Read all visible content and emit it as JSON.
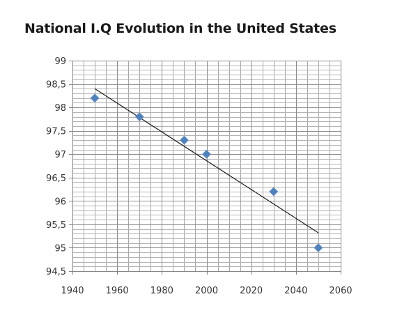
{
  "chart_data": {
    "type": "scatter",
    "title": "National I.Q Evolution in the United States",
    "xlabel": "",
    "ylabel": "",
    "xlim": [
      1940,
      2060
    ],
    "ylim": [
      94.5,
      99
    ],
    "x_ticks": [
      1940,
      1960,
      1980,
      2000,
      2020,
      2040,
      2060
    ],
    "x_tick_labels": [
      "1940",
      "1960",
      "1980",
      "2000",
      "2020",
      "2040",
      "2060"
    ],
    "y_ticks": [
      94.5,
      95,
      95.5,
      96,
      96.5,
      97,
      97.5,
      98,
      98.5,
      99
    ],
    "y_tick_labels": [
      "94,5",
      "95",
      "95,5",
      "96",
      "96,5",
      "97",
      "97,5",
      "98",
      "98,5",
      "99"
    ],
    "x_minor_step": 5,
    "y_minor_step": 0.1,
    "grid": true,
    "legend": "none",
    "series": [
      {
        "name": "National I.Q",
        "marker": "diamond",
        "color": "#4F81BD",
        "points": [
          {
            "x": 1950,
            "y": 98.2
          },
          {
            "x": 1970,
            "y": 97.8
          },
          {
            "x": 1990,
            "y": 97.3
          },
          {
            "x": 2000,
            "y": 97.0
          },
          {
            "x": 2030,
            "y": 96.2
          },
          {
            "x": 2050,
            "y": 95.0
          }
        ]
      }
    ],
    "trendline": {
      "type": "linear",
      "color": "#1a1a1a",
      "from": {
        "x": 1950,
        "y": 98.4
      },
      "to": {
        "x": 2050,
        "y": 95.32
      }
    }
  }
}
